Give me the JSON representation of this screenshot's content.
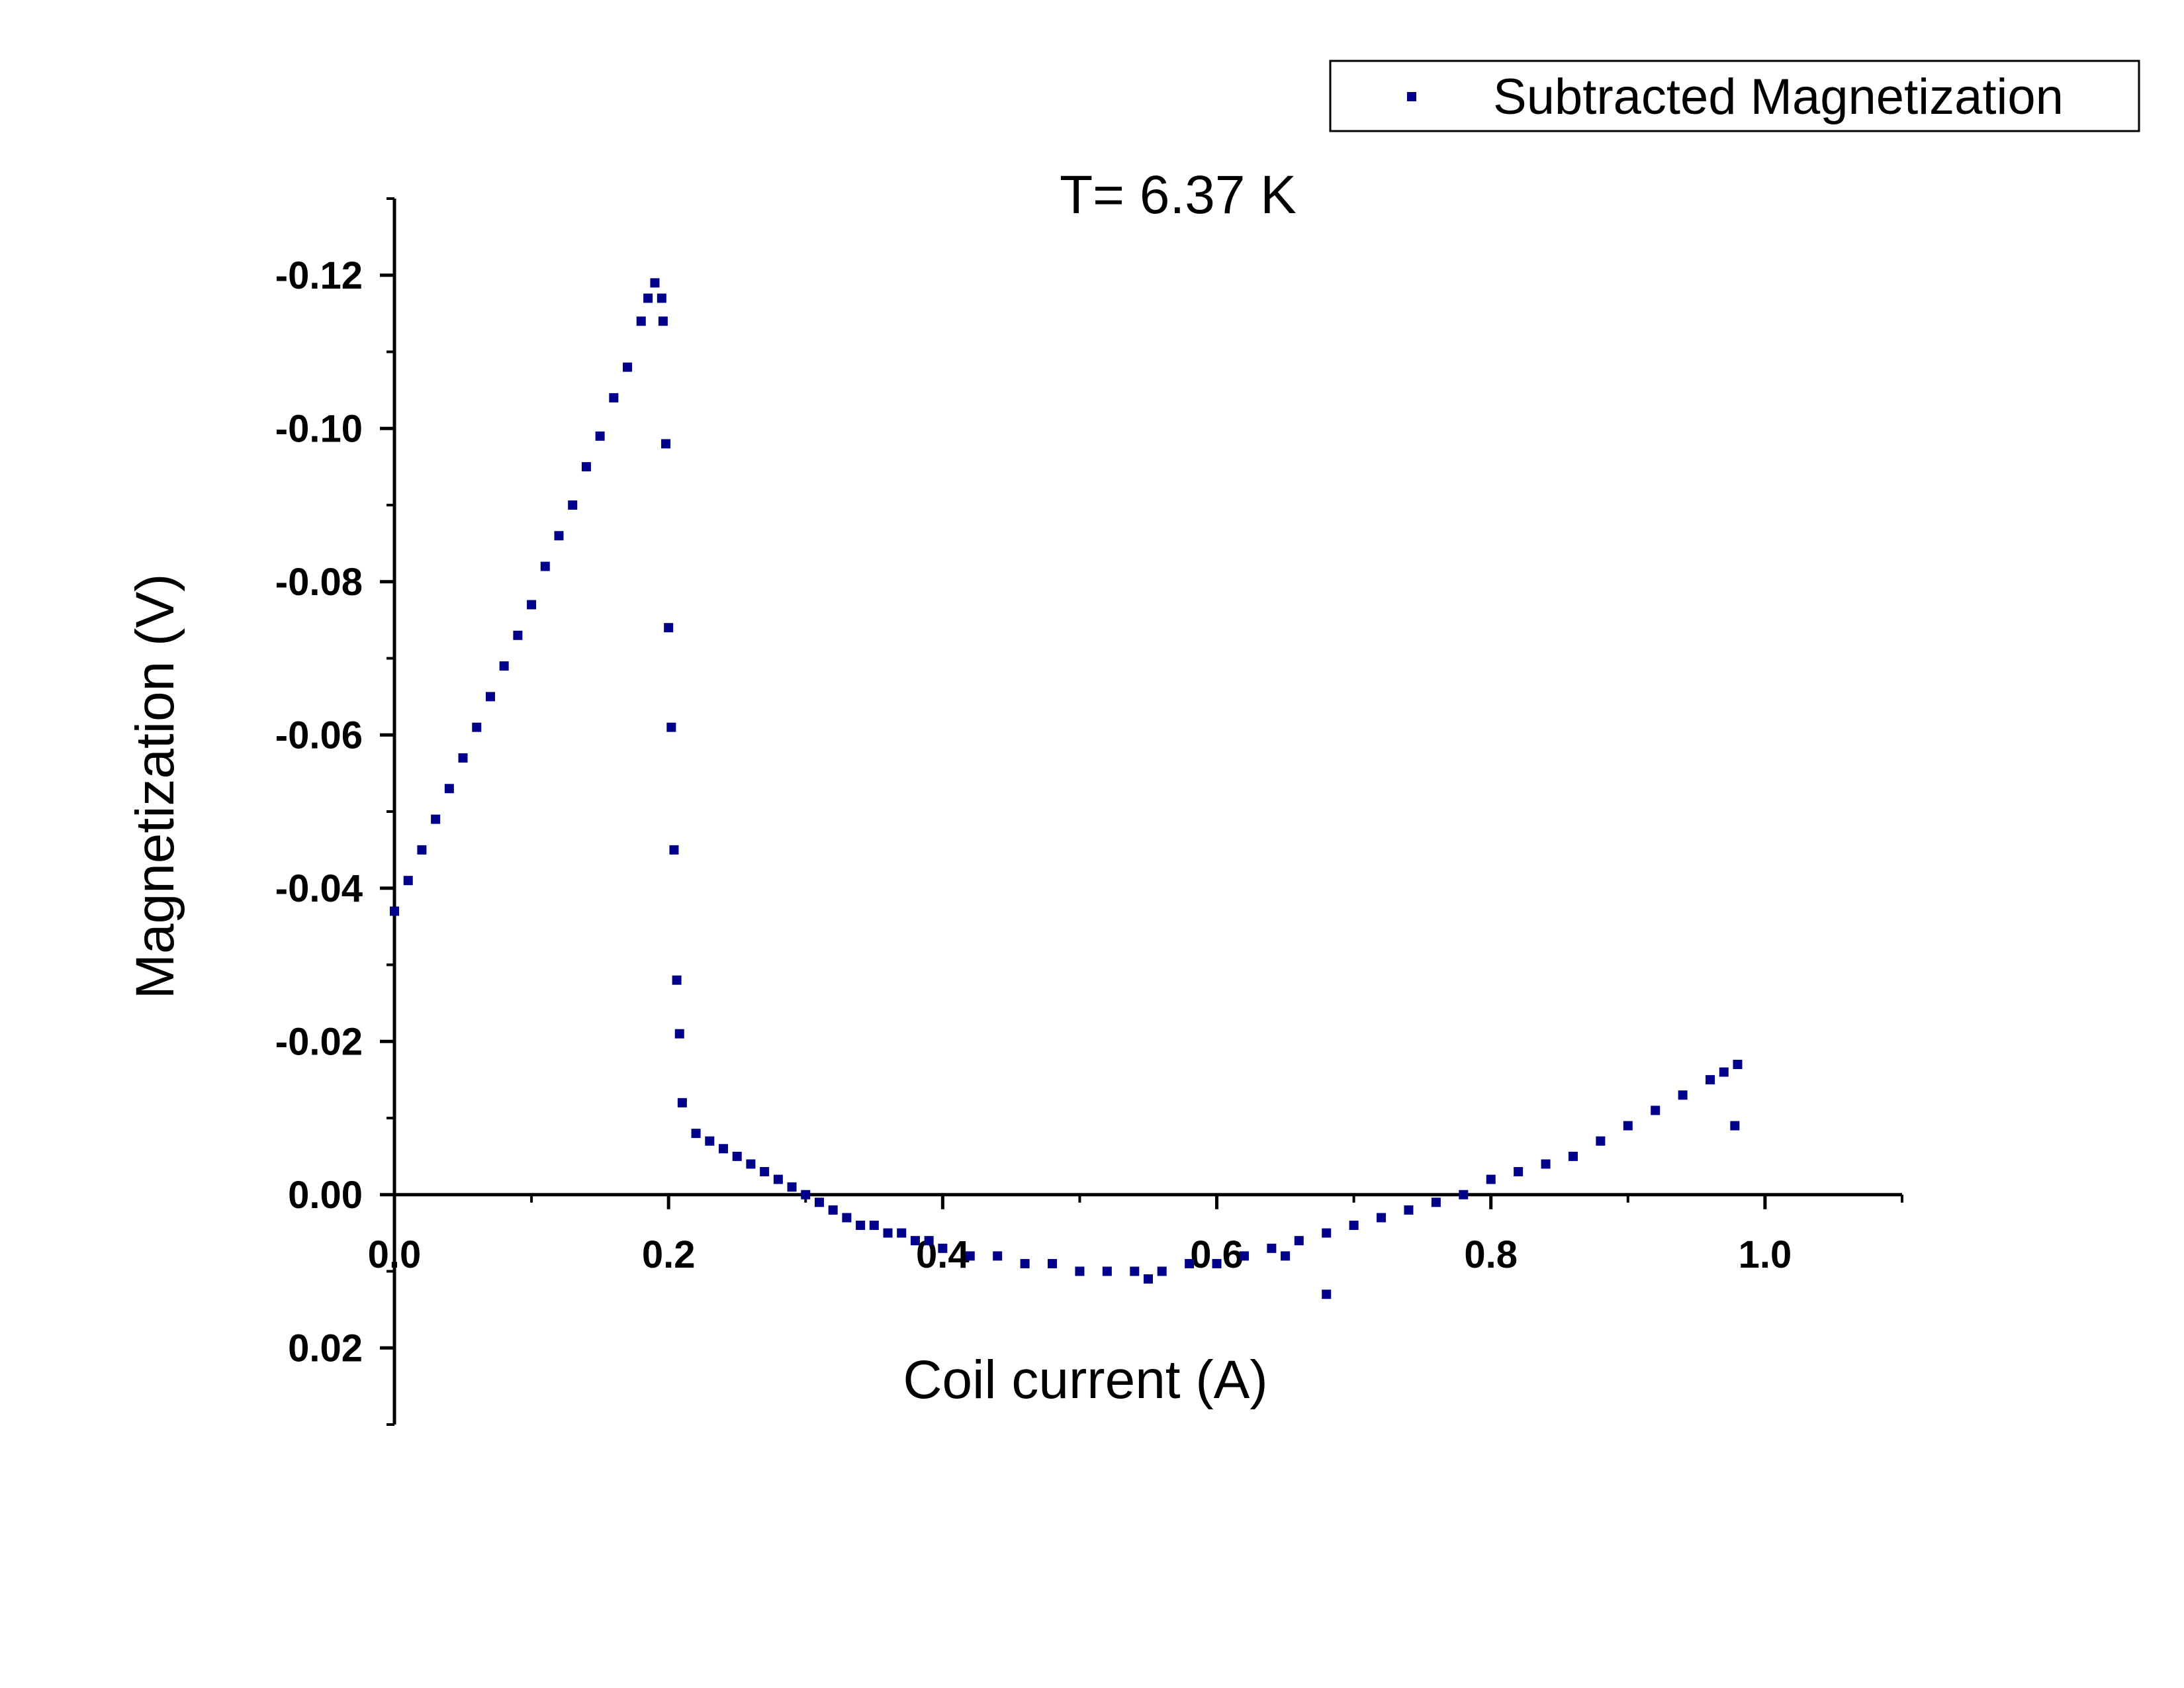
{
  "chart_data": {
    "type": "scatter",
    "title": "T= 6.37 K",
    "xlabel": "Coil current (A)",
    "ylabel": "Magnetization (V)",
    "xlim": [
      0.0,
      1.1
    ],
    "ylim": [
      0.03,
      -0.13
    ],
    "y_axis_inverted": true,
    "x_ticks": [
      {
        "value": 0.0,
        "label": "0.0"
      },
      {
        "value": 0.2,
        "label": "0.2"
      },
      {
        "value": 0.4,
        "label": "0.4"
      },
      {
        "value": 0.6,
        "label": "0.6"
      },
      {
        "value": 0.8,
        "label": "0.8"
      },
      {
        "value": 1.0,
        "label": "1.0"
      }
    ],
    "y_ticks": [
      {
        "value": -0.12,
        "label": "-0.12"
      },
      {
        "value": -0.1,
        "label": "-0.10"
      },
      {
        "value": -0.08,
        "label": "-0.08"
      },
      {
        "value": -0.06,
        "label": "-0.06"
      },
      {
        "value": -0.04,
        "label": "-0.04"
      },
      {
        "value": -0.02,
        "label": "-0.02"
      },
      {
        "value": 0.0,
        "label": "0.00"
      },
      {
        "value": 0.02,
        "label": "0.02"
      }
    ],
    "grid": false,
    "legend_position": "top-right",
    "marker_color": "#00008B",
    "series": [
      {
        "name": "Subtracted Magnetization",
        "x": [
          0.0,
          0.01,
          0.02,
          0.03,
          0.04,
          0.05,
          0.06,
          0.07,
          0.08,
          0.09,
          0.1,
          0.11,
          0.12,
          0.13,
          0.14,
          0.15,
          0.16,
          0.17,
          0.18,
          0.185,
          0.19,
          0.195,
          0.196,
          0.198,
          0.2,
          0.202,
          0.204,
          0.206,
          0.208,
          0.21,
          0.22,
          0.23,
          0.24,
          0.25,
          0.26,
          0.27,
          0.28,
          0.29,
          0.3,
          0.31,
          0.32,
          0.33,
          0.34,
          0.35,
          0.36,
          0.37,
          0.38,
          0.39,
          0.4,
          0.42,
          0.44,
          0.46,
          0.48,
          0.5,
          0.52,
          0.54,
          0.56,
          0.58,
          0.6,
          0.62,
          0.64,
          0.66,
          0.68,
          0.7,
          0.72,
          0.74,
          0.76,
          0.78,
          0.8,
          0.82,
          0.84,
          0.86,
          0.88,
          0.9,
          0.92,
          0.94,
          0.96,
          0.97,
          0.98,
          0.55,
          0.65,
          0.68,
          0.978
        ],
        "y": [
          -0.037,
          -0.041,
          -0.045,
          -0.049,
          -0.053,
          -0.057,
          -0.061,
          -0.065,
          -0.069,
          -0.073,
          -0.077,
          -0.082,
          -0.086,
          -0.09,
          -0.095,
          -0.099,
          -0.104,
          -0.108,
          -0.114,
          -0.117,
          -0.119,
          -0.117,
          -0.114,
          -0.098,
          -0.074,
          -0.061,
          -0.045,
          -0.028,
          -0.021,
          -0.012,
          -0.008,
          -0.007,
          -0.006,
          -0.005,
          -0.004,
          -0.003,
          -0.002,
          -0.001,
          0.0,
          0.001,
          0.002,
          0.003,
          0.004,
          0.004,
          0.005,
          0.005,
          0.006,
          0.006,
          0.007,
          0.008,
          0.008,
          0.009,
          0.009,
          0.01,
          0.01,
          0.01,
          0.01,
          0.009,
          0.009,
          0.008,
          0.007,
          0.006,
          0.005,
          0.004,
          0.003,
          0.002,
          0.001,
          0.0,
          -0.002,
          -0.003,
          -0.004,
          -0.005,
          -0.007,
          -0.009,
          -0.011,
          -0.013,
          -0.015,
          -0.016,
          -0.017,
          0.011,
          0.008,
          0.013,
          -0.009
        ]
      }
    ]
  }
}
